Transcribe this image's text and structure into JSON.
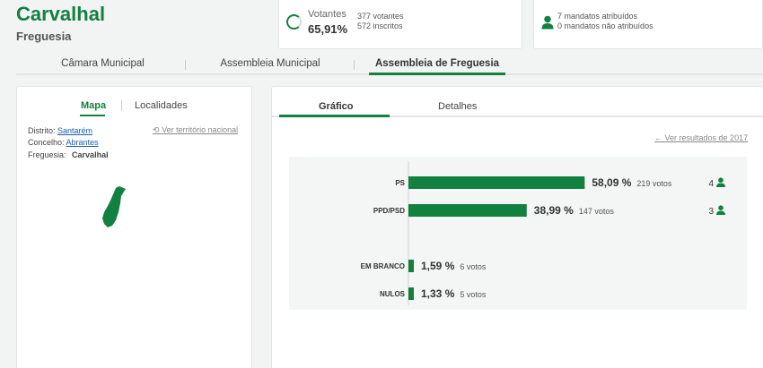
{
  "header": {
    "title": "Carvalhal",
    "subtitle": "Freguesia"
  },
  "votes_card": {
    "label": "Votantes",
    "percent": "65,91%",
    "percent_value": 65.91,
    "voters": "377 votantes",
    "registered": "572 inscritos"
  },
  "mandates_card": {
    "assigned": "7 mandatos atribuídos",
    "not_assigned": "0 mandatos não atribuídos"
  },
  "main_tabs": [
    {
      "label": "Câmara Municipal"
    },
    {
      "label": "Assembleia Municipal"
    },
    {
      "label": "Assembleia de Freguesia"
    }
  ],
  "left_panel": {
    "tabs": [
      {
        "label": "Mapa"
      },
      {
        "label": "Localidades"
      }
    ],
    "distrito_label": "Distrito:",
    "distrito_value": "Santarém",
    "concelho_label": "Concelho:",
    "concelho_value": "Abrantes",
    "freguesia_label": "Freguesia:",
    "freguesia_value": "Carvalhal",
    "national_link": "Ver território nacional"
  },
  "right_panel": {
    "tabs": [
      {
        "label": "Gráfico"
      },
      {
        "label": "Detalhes"
      }
    ],
    "results_link": "Ver resultados de 2017"
  },
  "colors": {
    "accent": "#12803f"
  },
  "chart_data": {
    "type": "bar",
    "orientation": "horizontal",
    "categories": [
      "PS",
      "PPD/PSD",
      "EM BRANCO",
      "NULOS"
    ],
    "values": [
      58.09,
      38.99,
      1.59,
      1.33
    ],
    "value_labels": [
      "58,09 %",
      "38,99 %",
      "1,59 %",
      "1,33 %"
    ],
    "votes_labels": [
      "219 votos",
      "147 votos",
      "6 votos",
      "5 votos"
    ],
    "seats": [
      "4",
      "3",
      "",
      ""
    ],
    "xlim": [
      0,
      100
    ]
  }
}
